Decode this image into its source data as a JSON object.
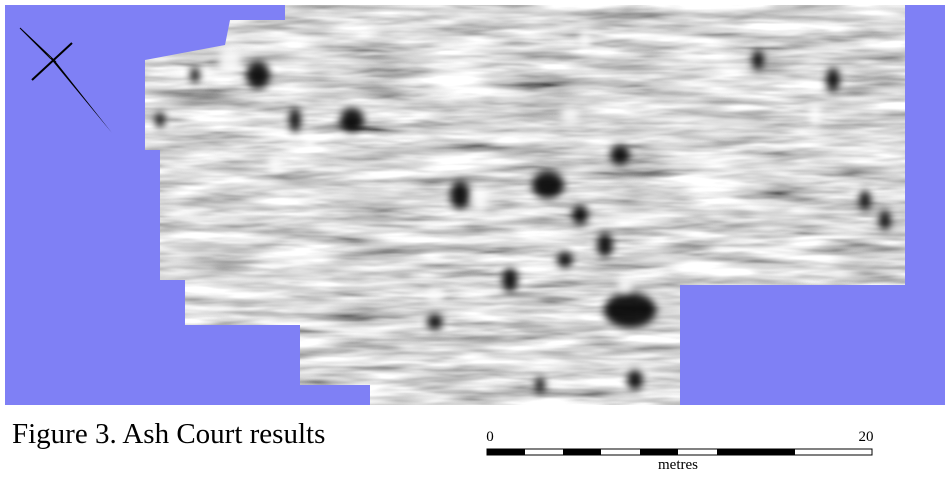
{
  "figure": {
    "caption": "Figure 3. Ash Court results",
    "scale_bar": {
      "start_label": "0",
      "end_label": "20",
      "unit": "metres"
    }
  }
}
